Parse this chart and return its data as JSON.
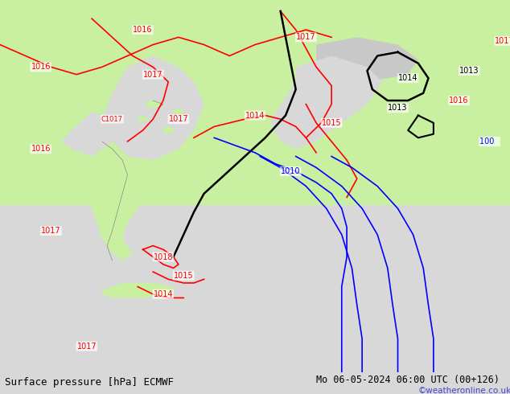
{
  "title_left": "Surface pressure [hPa] ECMWF",
  "title_right": "Mo 06-05-2024 06:00 UTC (00+126)",
  "credit": "©weatheronline.co.uk",
  "bg_color": "#d8d8d8",
  "map_bg": "#f0f0f0",
  "land_green": "#c8f0a0",
  "land_light": "#e8e8e8",
  "sea_color": "#d8d8d8",
  "contour_red": "#ff0000",
  "contour_black": "#000000",
  "contour_blue": "#0000ff",
  "label_fontsize": 8,
  "footer_fontsize": 9
}
